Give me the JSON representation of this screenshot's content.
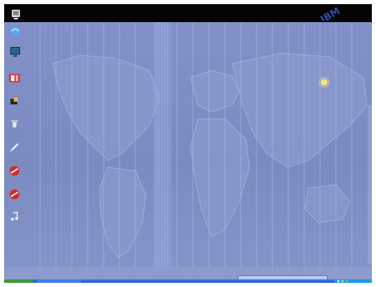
{
  "desktop": {
    "brand_logo": "IBM",
    "wallpaper": {
      "timezone_labels": [
        "",
        "",
        "",
        "",
        "",
        "",
        "",
        "",
        "",
        "",
        "",
        "",
        "",
        "",
        "",
        "",
        "",
        "",
        "",
        "",
        ""
      ]
    },
    "icons": [
      {
        "name": "top-left-desktop-icon",
        "label": ""
      },
      {
        "name": "network-icon",
        "label": ""
      },
      {
        "name": "monitor-icon",
        "label": ""
      },
      {
        "name": "red-app-icon",
        "label": ""
      },
      {
        "name": "tool-icon",
        "label": ""
      },
      {
        "name": "recycle-icon",
        "label": ""
      },
      {
        "name": "pen-icon",
        "label": ""
      },
      {
        "name": "red-disc-icon-1",
        "label": ""
      },
      {
        "name": "red-disc-icon-2",
        "label": ""
      },
      {
        "name": "music-note-icon",
        "label": ""
      }
    ],
    "sun_indicator": "sun-icon"
  },
  "taskbar": {
    "start_label": "",
    "task_label": "",
    "notification_text": "",
    "clock": ""
  },
  "colors": {
    "desktop_background": "#7f8fc3",
    "topbar": "#040404",
    "taskbar": "#245ad0",
    "start_button": "#3a9a3a",
    "tray": "#1c9ce8"
  }
}
